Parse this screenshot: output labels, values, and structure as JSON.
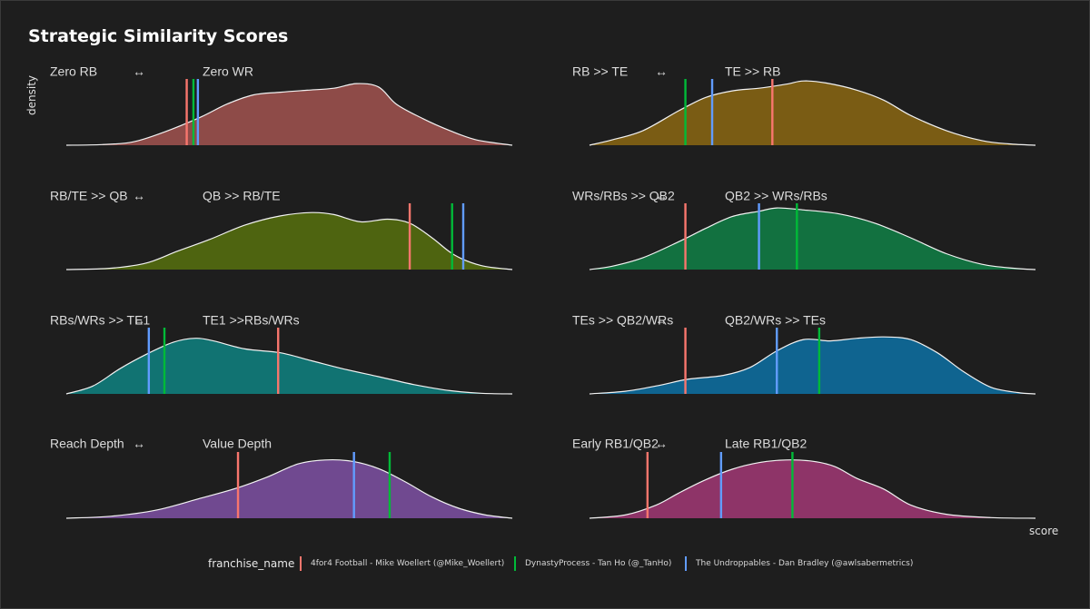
{
  "chart_data": {
    "type": "density",
    "title": "Strategic Similarity Scores",
    "ylabel": "density",
    "xlabel": "score",
    "grid": false,
    "legend": {
      "title": "franchise_name",
      "placement": "bottom",
      "entries": [
        {
          "name": "4for4 Football - Mike Woellert (@Mike_Woellert)",
          "color": "#f8766d"
        },
        {
          "name": "DynastyProcess - Tan Ho (@_TanHo)",
          "color": "#00ba38"
        },
        {
          "name": "The Undroppables - Dan Bradley (@awlsabermetrics)",
          "color": "#619cff"
        }
      ]
    },
    "x_range": [
      0,
      1
    ],
    "panels": [
      {
        "left_label": "Zero RB",
        "arrow": "↔",
        "right_label": "Zero WR",
        "fill": "#8e4b48",
        "density": [
          [
            0,
            0
          ],
          [
            0.08,
            0.01
          ],
          [
            0.15,
            0.05
          ],
          [
            0.22,
            0.2
          ],
          [
            0.3,
            0.42
          ],
          [
            0.36,
            0.62
          ],
          [
            0.42,
            0.76
          ],
          [
            0.48,
            0.8
          ],
          [
            0.54,
            0.83
          ],
          [
            0.6,
            0.86
          ],
          [
            0.65,
            0.93
          ],
          [
            0.7,
            0.88
          ],
          [
            0.74,
            0.62
          ],
          [
            0.8,
            0.4
          ],
          [
            0.86,
            0.22
          ],
          [
            0.92,
            0.08
          ],
          [
            1,
            0
          ]
        ],
        "markers": {
          "4for4 Football - Mike Woellert (@Mike_Woellert)": 0.27,
          "DynastyProcess - Tan Ho (@_TanHo)": 0.285,
          "The Undroppables - Dan Bradley (@awlsabermetrics)": 0.295
        }
      },
      {
        "left_label": "RB >> TE",
        "arrow": "↔",
        "right_label": "TE >> RB",
        "fill": "#7a5c14",
        "density": [
          [
            0,
            0
          ],
          [
            0.05,
            0.08
          ],
          [
            0.12,
            0.22
          ],
          [
            0.2,
            0.52
          ],
          [
            0.26,
            0.72
          ],
          [
            0.32,
            0.82
          ],
          [
            0.38,
            0.86
          ],
          [
            0.44,
            0.92
          ],
          [
            0.48,
            0.97
          ],
          [
            0.53,
            0.94
          ],
          [
            0.6,
            0.83
          ],
          [
            0.66,
            0.68
          ],
          [
            0.72,
            0.45
          ],
          [
            0.8,
            0.22
          ],
          [
            0.88,
            0.07
          ],
          [
            0.94,
            0.02
          ],
          [
            1,
            0
          ]
        ],
        "markers": {
          "4for4 Football - Mike Woellert (@Mike_Woellert)": 0.41,
          "DynastyProcess - Tan Ho (@_TanHo)": 0.215,
          "The Undroppables - Dan Bradley (@awlsabermetrics)": 0.275
        }
      },
      {
        "left_label": "RB/TE >> QB",
        "arrow": "↔",
        "right_label": "QB >> RB/TE",
        "fill": "#4e6410",
        "density": [
          [
            0,
            0
          ],
          [
            0.1,
            0.02
          ],
          [
            0.18,
            0.1
          ],
          [
            0.25,
            0.28
          ],
          [
            0.32,
            0.45
          ],
          [
            0.4,
            0.67
          ],
          [
            0.48,
            0.81
          ],
          [
            0.55,
            0.86
          ],
          [
            0.6,
            0.83
          ],
          [
            0.66,
            0.72
          ],
          [
            0.72,
            0.76
          ],
          [
            0.77,
            0.7
          ],
          [
            0.82,
            0.48
          ],
          [
            0.87,
            0.22
          ],
          [
            0.93,
            0.06
          ],
          [
            1,
            0
          ]
        ],
        "markers": {
          "4for4 Football - Mike Woellert (@Mike_Woellert)": 0.77,
          "DynastyProcess - Tan Ho (@_TanHo)": 0.865,
          "The Undroppables - Dan Bradley (@awlsabermetrics)": 0.89
        }
      },
      {
        "left_label": "WRs/RBs >> QB2",
        "arrow": "↔",
        "right_label": "QB2 >> WRs/RBs",
        "fill": "#127140",
        "density": [
          [
            0,
            0
          ],
          [
            0.05,
            0.05
          ],
          [
            0.12,
            0.18
          ],
          [
            0.2,
            0.42
          ],
          [
            0.26,
            0.62
          ],
          [
            0.32,
            0.8
          ],
          [
            0.38,
            0.88
          ],
          [
            0.42,
            0.93
          ],
          [
            0.48,
            0.9
          ],
          [
            0.56,
            0.84
          ],
          [
            0.64,
            0.7
          ],
          [
            0.72,
            0.48
          ],
          [
            0.8,
            0.24
          ],
          [
            0.88,
            0.08
          ],
          [
            0.95,
            0.02
          ],
          [
            1,
            0
          ]
        ],
        "markers": {
          "4for4 Football - Mike Woellert (@Mike_Woellert)": 0.215,
          "DynastyProcess - Tan Ho (@_TanHo)": 0.465,
          "The Undroppables - Dan Bradley (@awlsabermetrics)": 0.38
        }
      },
      {
        "left_label": "RBs/WRs >> TE1",
        "arrow": "↔",
        "right_label": "TE1 >>RBs/WRs",
        "fill": "#117372",
        "density": [
          [
            0,
            0
          ],
          [
            0.06,
            0.12
          ],
          [
            0.12,
            0.38
          ],
          [
            0.18,
            0.6
          ],
          [
            0.24,
            0.78
          ],
          [
            0.29,
            0.84
          ],
          [
            0.33,
            0.8
          ],
          [
            0.4,
            0.68
          ],
          [
            0.48,
            0.62
          ],
          [
            0.55,
            0.5
          ],
          [
            0.62,
            0.38
          ],
          [
            0.7,
            0.26
          ],
          [
            0.78,
            0.14
          ],
          [
            0.86,
            0.05
          ],
          [
            0.93,
            0.01
          ],
          [
            1,
            0
          ]
        ],
        "markers": {
          "4for4 Football - Mike Woellert (@Mike_Woellert)": 0.475,
          "DynastyProcess - Tan Ho (@_TanHo)": 0.22,
          "The Undroppables - Dan Bradley (@awlsabermetrics)": 0.185
        }
      },
      {
        "left_label": "TEs >> QB2/WRs",
        "arrow": "↔",
        "right_label": "QB2/WRs >> TEs",
        "fill": "#0f6490",
        "density": [
          [
            0,
            0
          ],
          [
            0.08,
            0.04
          ],
          [
            0.15,
            0.12
          ],
          [
            0.22,
            0.22
          ],
          [
            0.3,
            0.28
          ],
          [
            0.36,
            0.4
          ],
          [
            0.42,
            0.65
          ],
          [
            0.48,
            0.82
          ],
          [
            0.54,
            0.8
          ],
          [
            0.6,
            0.84
          ],
          [
            0.66,
            0.86
          ],
          [
            0.72,
            0.82
          ],
          [
            0.78,
            0.62
          ],
          [
            0.84,
            0.33
          ],
          [
            0.9,
            0.1
          ],
          [
            0.96,
            0.02
          ],
          [
            1,
            0
          ]
        ],
        "markers": {
          "4for4 Football - Mike Woellert (@Mike_Woellert)": 0.215,
          "DynastyProcess - Tan Ho (@_TanHo)": 0.515,
          "The Undroppables - Dan Bradley (@awlsabermetrics)": 0.42
        }
      },
      {
        "left_label": "Reach Depth",
        "arrow": "↔",
        "right_label": "Value Depth",
        "fill": "#704990",
        "density": [
          [
            0,
            0
          ],
          [
            0.1,
            0.03
          ],
          [
            0.2,
            0.12
          ],
          [
            0.3,
            0.3
          ],
          [
            0.38,
            0.45
          ],
          [
            0.45,
            0.62
          ],
          [
            0.52,
            0.82
          ],
          [
            0.58,
            0.88
          ],
          [
            0.64,
            0.86
          ],
          [
            0.7,
            0.75
          ],
          [
            0.76,
            0.55
          ],
          [
            0.82,
            0.32
          ],
          [
            0.88,
            0.15
          ],
          [
            0.94,
            0.05
          ],
          [
            1,
            0
          ]
        ],
        "markers": {
          "4for4 Football - Mike Woellert (@Mike_Woellert)": 0.385,
          "DynastyProcess - Tan Ho (@_TanHo)": 0.725,
          "The Undroppables - Dan Bradley (@awlsabermetrics)": 0.645
        }
      },
      {
        "left_label": "Early RB1/QB2",
        "arrow": "↔",
        "right_label": "Late RB1/QB2",
        "fill": "#8e3468",
        "density": [
          [
            0,
            0
          ],
          [
            0.08,
            0.05
          ],
          [
            0.15,
            0.2
          ],
          [
            0.2,
            0.38
          ],
          [
            0.26,
            0.58
          ],
          [
            0.32,
            0.74
          ],
          [
            0.38,
            0.84
          ],
          [
            0.44,
            0.88
          ],
          [
            0.5,
            0.86
          ],
          [
            0.55,
            0.78
          ],
          [
            0.6,
            0.6
          ],
          [
            0.66,
            0.44
          ],
          [
            0.72,
            0.2
          ],
          [
            0.8,
            0.06
          ],
          [
            0.9,
            0.01
          ],
          [
            1,
            0
          ]
        ],
        "markers": {
          "4for4 Football - Mike Woellert (@Mike_Woellert)": 0.13,
          "DynastyProcess - Tan Ho (@_TanHo)": 0.455,
          "The Undroppables - Dan Bradley (@awlsabermetrics)": 0.295
        }
      }
    ]
  }
}
